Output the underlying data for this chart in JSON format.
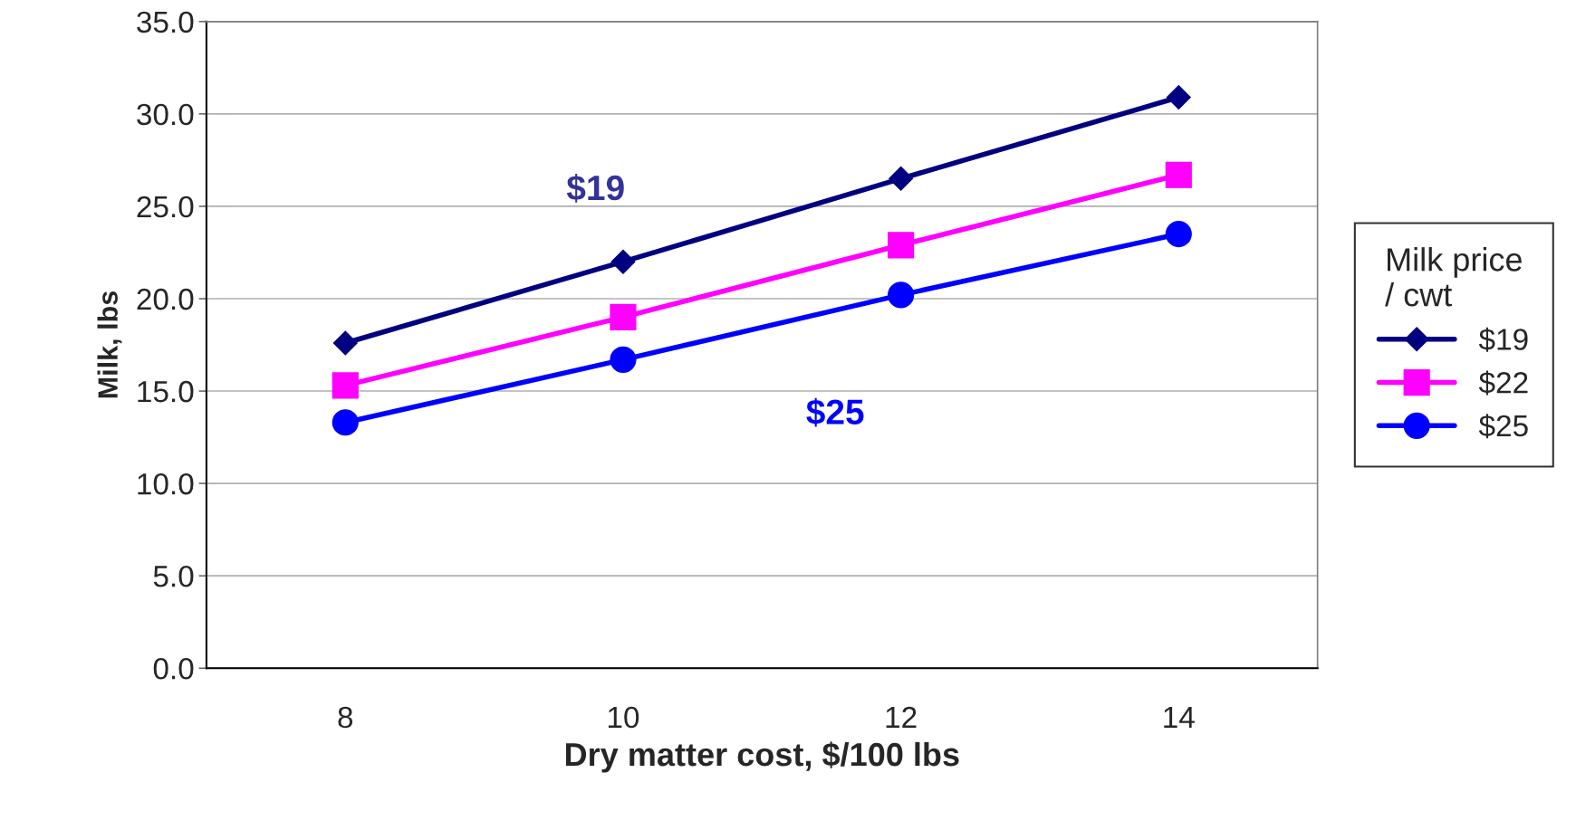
{
  "chart_data": {
    "type": "line",
    "xlabel": "Dry matter cost, $/100 lbs",
    "ylabel": "Milk, lbs",
    "legend_title": "Milk price\n/ cwt",
    "categories": [
      "8",
      "10",
      "12",
      "14"
    ],
    "series": [
      {
        "name": "$19",
        "color": "#000080",
        "marker": "diamond",
        "values": [
          17.6,
          22.0,
          26.5,
          30.9
        ]
      },
      {
        "name": "$22",
        "color": "#ff00ff",
        "marker": "square",
        "values": [
          15.3,
          19.0,
          22.9,
          26.7
        ]
      },
      {
        "name": "$25",
        "color": "#0000ff",
        "marker": "circle",
        "values": [
          13.3,
          16.7,
          20.2,
          23.5
        ]
      }
    ],
    "annotations": [
      "$19",
      "$25"
    ],
    "ylim": [
      0,
      35
    ],
    "yticks": [
      {
        "value": 0,
        "label": "0.0"
      },
      {
        "value": 5,
        "label": "5.0"
      },
      {
        "value": 10,
        "label": "10.0"
      },
      {
        "value": 15,
        "label": "15.0"
      },
      {
        "value": 20,
        "label": "20.0"
      },
      {
        "value": 25,
        "label": "25.0"
      },
      {
        "value": 30,
        "label": "30.0"
      },
      {
        "value": 35,
        "label": "35.0"
      }
    ],
    "grid": "y",
    "legend": "right"
  }
}
